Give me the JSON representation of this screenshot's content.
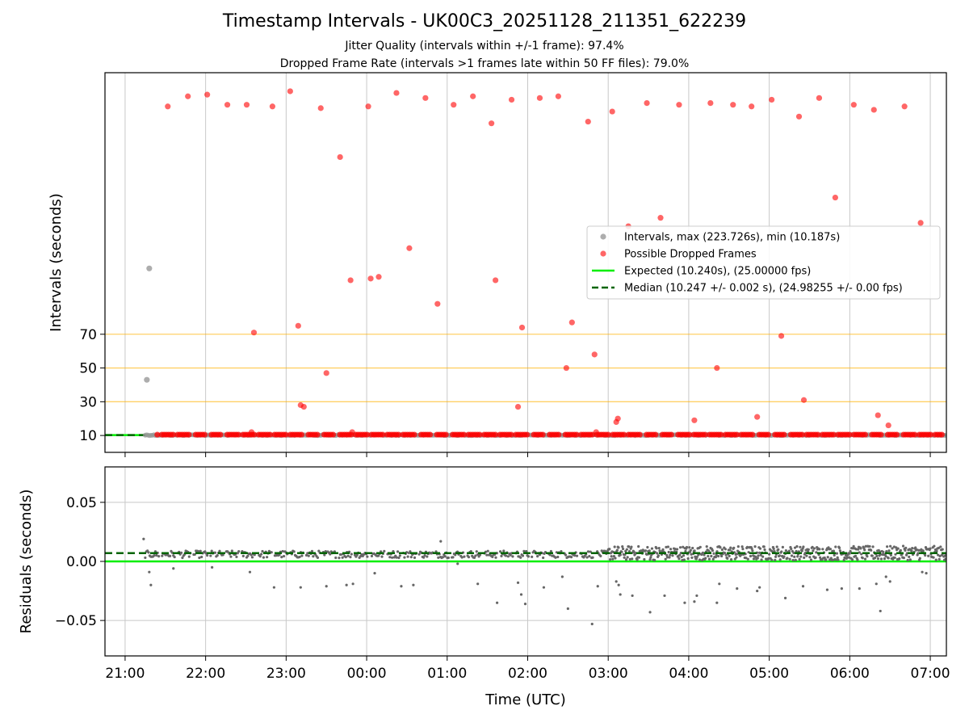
{
  "figure": {
    "title": "Timestamp Intervals - UK00C3_20251128_211351_622239",
    "subtitle_1": "Jitter Quality (intervals within +/-1 frame): 97.4%",
    "subtitle_2": "Dropped Frame Rate (intervals >1 frames late within 50 FF files): 79.0%"
  },
  "colors": {
    "intervals": "#999999",
    "dropped": "#ff0000",
    "expected": "#00ee00",
    "median": "#006400",
    "threshold_lines": "#ffb000",
    "grid": "#c8c8c8",
    "residual_points": "#666666"
  },
  "chart_data": [
    {
      "type": "scatter",
      "name": "intervals-panel",
      "xlabel": "Time (UTC)",
      "ylabel": "Intervals (seconds)",
      "x_ticks": [
        "21:00",
        "22:00",
        "23:00",
        "00:00",
        "01:00",
        "02:00",
        "03:00",
        "04:00",
        "05:00",
        "06:00",
        "07:00"
      ],
      "xlim_hours": [
        20.75,
        31.2
      ],
      "ylim": [
        0,
        225
      ],
      "y_ticks": [
        10,
        30,
        50,
        70
      ],
      "horizontal_lines": [
        30,
        50,
        70
      ],
      "grid": "vertical",
      "legend_position": "right",
      "legend": [
        "Intervals, max (223.726s), min (10.187s)",
        "Possible Dropped Frames",
        "Expected (10.240s), (25.00000 fps)",
        "Median (10.247 +/- 0.002 s), (24.98255 +/- 0.00 fps)"
      ],
      "expected_interval": 10.24,
      "median_interval": 10.247,
      "intervals_outliers": [
        {
          "t": 21.27,
          "y": 43
        },
        {
          "t": 21.3,
          "y": 109
        }
      ],
      "dropped_frames": [
        {
          "t": 21.53,
          "y": 205
        },
        {
          "t": 21.78,
          "y": 211
        },
        {
          "t": 22.02,
          "y": 212
        },
        {
          "t": 22.27,
          "y": 206
        },
        {
          "t": 22.51,
          "y": 206
        },
        {
          "t": 22.83,
          "y": 205
        },
        {
          "t": 23.05,
          "y": 214
        },
        {
          "t": 23.43,
          "y": 204
        },
        {
          "t": 23.67,
          "y": 175
        },
        {
          "t": 24.02,
          "y": 205
        },
        {
          "t": 24.37,
          "y": 213
        },
        {
          "t": 24.73,
          "y": 210
        },
        {
          "t": 25.08,
          "y": 206
        },
        {
          "t": 25.32,
          "y": 211
        },
        {
          "t": 25.55,
          "y": 195
        },
        {
          "t": 25.8,
          "y": 209
        },
        {
          "t": 26.15,
          "y": 210
        },
        {
          "t": 26.38,
          "y": 211
        },
        {
          "t": 26.75,
          "y": 196
        },
        {
          "t": 27.05,
          "y": 202
        },
        {
          "t": 27.48,
          "y": 207
        },
        {
          "t": 27.88,
          "y": 206
        },
        {
          "t": 28.27,
          "y": 207
        },
        {
          "t": 28.55,
          "y": 206
        },
        {
          "t": 28.78,
          "y": 205
        },
        {
          "t": 29.03,
          "y": 209
        },
        {
          "t": 29.37,
          "y": 199
        },
        {
          "t": 29.62,
          "y": 210
        },
        {
          "t": 30.05,
          "y": 206
        },
        {
          "t": 30.3,
          "y": 203
        },
        {
          "t": 30.68,
          "y": 205
        },
        {
          "t": 29.82,
          "y": 151
        },
        {
          "t": 30.88,
          "y": 136
        },
        {
          "t": 27.25,
          "y": 134
        },
        {
          "t": 27.65,
          "y": 139
        },
        {
          "t": 24.53,
          "y": 121
        },
        {
          "t": 24.05,
          "y": 103
        },
        {
          "t": 25.6,
          "y": 102
        },
        {
          "t": 24.15,
          "y": 104
        },
        {
          "t": 23.8,
          "y": 102
        },
        {
          "t": 24.88,
          "y": 88
        },
        {
          "t": 23.15,
          "y": 75
        },
        {
          "t": 25.93,
          "y": 74
        },
        {
          "t": 26.55,
          "y": 77
        },
        {
          "t": 22.6,
          "y": 71
        },
        {
          "t": 29.15,
          "y": 69
        },
        {
          "t": 26.83,
          "y": 58
        },
        {
          "t": 26.48,
          "y": 50
        },
        {
          "t": 28.35,
          "y": 50
        },
        {
          "t": 23.5,
          "y": 47
        },
        {
          "t": 23.18,
          "y": 28
        },
        {
          "t": 23.22,
          "y": 27
        },
        {
          "t": 25.88,
          "y": 27
        },
        {
          "t": 28.85,
          "y": 21
        },
        {
          "t": 27.12,
          "y": 20
        },
        {
          "t": 27.1,
          "y": 18
        },
        {
          "t": 28.07,
          "y": 19
        },
        {
          "t": 29.43,
          "y": 31
        },
        {
          "t": 30.35,
          "y": 22
        },
        {
          "t": 30.48,
          "y": 16
        },
        {
          "t": 22.57,
          "y": 12
        },
        {
          "t": 23.82,
          "y": 12
        },
        {
          "t": 26.85,
          "y": 12
        }
      ],
      "regular_band": {
        "t_start": 21.25,
        "t_end": 31.2,
        "y": 10.24
      }
    },
    {
      "type": "scatter",
      "name": "residuals-panel",
      "xlabel": "Time (UTC)",
      "ylabel": "Residuals (seconds)",
      "x_ticks": [
        "21:00",
        "22:00",
        "23:00",
        "00:00",
        "01:00",
        "02:00",
        "03:00",
        "04:00",
        "05:00",
        "06:00",
        "07:00"
      ],
      "xlim_hours": [
        20.75,
        31.2
      ],
      "ylim": [
        -0.08,
        0.08
      ],
      "y_ticks": [
        "0.05",
        "0.00",
        "−0.05"
      ],
      "grid": true,
      "expected_residual": 0.0,
      "median_residual": 0.007,
      "outliers": [
        {
          "t": 21.23,
          "y": 0.019
        },
        {
          "t": 21.32,
          "y": -0.02
        },
        {
          "t": 21.3,
          "y": -0.009
        },
        {
          "t": 21.6,
          "y": -0.006
        },
        {
          "t": 22.08,
          "y": -0.005
        },
        {
          "t": 22.55,
          "y": -0.009
        },
        {
          "t": 22.85,
          "y": -0.022
        },
        {
          "t": 23.18,
          "y": -0.022
        },
        {
          "t": 23.5,
          "y": -0.021
        },
        {
          "t": 23.75,
          "y": -0.02
        },
        {
          "t": 23.83,
          "y": -0.019
        },
        {
          "t": 24.1,
          "y": -0.01
        },
        {
          "t": 24.43,
          "y": -0.021
        },
        {
          "t": 24.58,
          "y": -0.02
        },
        {
          "t": 24.92,
          "y": 0.017
        },
        {
          "t": 25.13,
          "y": -0.002
        },
        {
          "t": 25.38,
          "y": -0.019
        },
        {
          "t": 25.62,
          "y": -0.035
        },
        {
          "t": 25.88,
          "y": -0.018
        },
        {
          "t": 25.92,
          "y": -0.028
        },
        {
          "t": 25.97,
          "y": -0.036
        },
        {
          "t": 26.2,
          "y": -0.022
        },
        {
          "t": 26.43,
          "y": -0.013
        },
        {
          "t": 26.5,
          "y": -0.04
        },
        {
          "t": 26.8,
          "y": -0.053
        },
        {
          "t": 26.87,
          "y": -0.021
        },
        {
          "t": 27.1,
          "y": -0.017
        },
        {
          "t": 27.13,
          "y": -0.02
        },
        {
          "t": 27.15,
          "y": -0.028
        },
        {
          "t": 27.3,
          "y": -0.029
        },
        {
          "t": 27.52,
          "y": -0.043
        },
        {
          "t": 27.7,
          "y": -0.029
        },
        {
          "t": 27.95,
          "y": -0.035
        },
        {
          "t": 28.07,
          "y": -0.034
        },
        {
          "t": 28.1,
          "y": -0.029
        },
        {
          "t": 28.35,
          "y": -0.035
        },
        {
          "t": 28.38,
          "y": -0.019
        },
        {
          "t": 28.6,
          "y": -0.023
        },
        {
          "t": 28.85,
          "y": -0.025
        },
        {
          "t": 28.88,
          "y": -0.022
        },
        {
          "t": 29.2,
          "y": -0.031
        },
        {
          "t": 29.42,
          "y": -0.021
        },
        {
          "t": 29.72,
          "y": -0.024
        },
        {
          "t": 29.9,
          "y": -0.023
        },
        {
          "t": 30.12,
          "y": -0.023
        },
        {
          "t": 30.33,
          "y": -0.019
        },
        {
          "t": 30.38,
          "y": -0.042
        },
        {
          "t": 30.45,
          "y": -0.013
        },
        {
          "t": 30.5,
          "y": -0.017
        },
        {
          "t": 30.9,
          "y": -0.009
        },
        {
          "t": 30.95,
          "y": -0.01
        }
      ],
      "core_band": [
        {
          "t_start": 21.25,
          "t_end": 27.0,
          "y_center": 0.006,
          "spread": 0.003
        },
        {
          "t_start": 27.0,
          "t_end": 31.2,
          "y_center": 0.007,
          "spread": 0.006
        }
      ]
    }
  ]
}
